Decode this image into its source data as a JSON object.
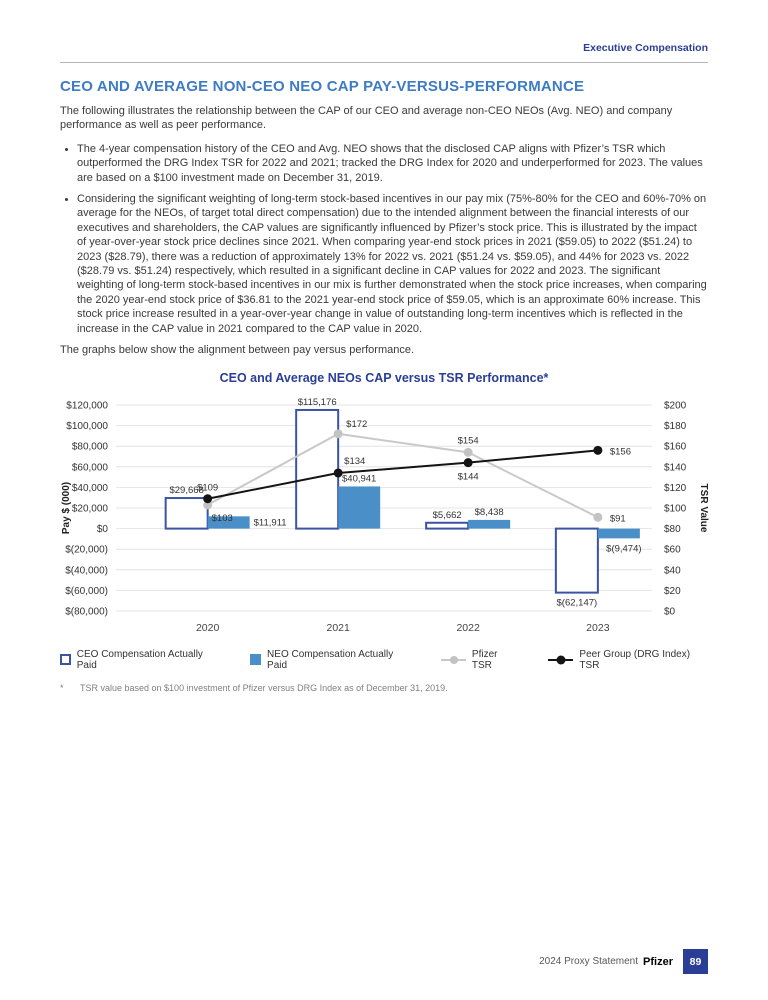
{
  "header": {
    "crumb": "Executive Compensation"
  },
  "section": {
    "title": "CEO AND AVERAGE NON-CEO NEO CAP PAY-VERSUS-PERFORMANCE",
    "intro": "The following illustrates the relationship between the CAP of our CEO and average non-CEO NEOs (Avg. NEO) and company performance as well as peer performance.",
    "bullets": [
      "The 4-year compensation history of the CEO and Avg. NEO shows that the disclosed CAP aligns with Pfizer’s TSR which outperformed the DRG Index TSR for 2022 and 2021; tracked the DRG Index for 2020 and underperformed for 2023. The values are based on a $100 investment made on December 31, 2019.",
      "Considering the significant weighting of long-term stock-based incentives in our pay mix (75%-80% for the CEO and 60%-70% on average for the NEOs, of target total direct compensation) due to the intended alignment between the financial interests of our executives and shareholders, the CAP values are significantly influenced by Pfizer’s stock price. This is illustrated by the impact of year-over-year stock price declines since 2021. When comparing year-end stock prices in 2021 ($59.05) to 2022 ($51.24) to 2023 ($28.79), there was a reduction of approximately 13% for 2022 vs. 2021 ($51.24 vs. $59.05), and 44% for 2023 vs. 2022 ($28.79 vs. $51.24) respectively, which resulted in a significant decline in CAP values for 2022 and 2023. The significant weighting of long-term stock-based incentives in our mix is further demonstrated when the stock price increases, when comparing the 2020 year-end stock price of $36.81 to the 2021 year-end stock price of $59.05, which is an approximate 60% increase. This stock price increase resulted in a year-over-year change in value of outstanding long-term incentives which is reflected in the increase in the CAP value in 2021 compared to the CAP value in 2020."
    ],
    "graphs_note": "The graphs below show the alignment between pay versus performance."
  },
  "chart_data": {
    "type": "bar+line combo",
    "title": "CEO and Average NEOs CAP versus TSR Performance*",
    "categories": [
      "2020",
      "2021",
      "2022",
      "2023"
    ],
    "left_axis": {
      "label": "Pay $ (000)",
      "min": -80000,
      "max": 120000,
      "tick_step": 20000,
      "ticks": [
        "$120,000",
        "$100,000",
        "$80,000",
        "$60,000",
        "$40,000",
        "$20,000",
        "$0",
        "$(20,000)",
        "$(40,000)",
        "$(60,000)",
        "$(80,000)"
      ]
    },
    "right_axis": {
      "label": "TSR Value",
      "min": 0,
      "max": 200,
      "tick_step": 20,
      "ticks": [
        "$200",
        "$180",
        "$160",
        "$140",
        "$120",
        "$100",
        "$80",
        "$60",
        "$40",
        "$20",
        "$0"
      ]
    },
    "grid": true,
    "legend_position": "bottom",
    "series": [
      {
        "name": "CEO Compensation Actually Paid",
        "type": "bar",
        "style": "outline",
        "axis": "left",
        "color": "#3a53a4",
        "values": [
          29668,
          115176,
          5662,
          -62147
        ],
        "labels": [
          "$29,668",
          "$115,176",
          "$5,662",
          "$(62,147)"
        ]
      },
      {
        "name": "NEO Compensation Actually Paid",
        "type": "bar",
        "style": "solid",
        "axis": "left",
        "color": "#4a8fc7",
        "values": [
          11911,
          40941,
          8438,
          -9474
        ],
        "labels": [
          "$11,911",
          "$40,941",
          "$8,438",
          "$(9,474)"
        ]
      },
      {
        "name": "Pfizer TSR",
        "type": "line",
        "axis": "right",
        "color": "#c9c9c9",
        "values": [
          103,
          172,
          154,
          91
        ],
        "labels": [
          "$103",
          "$172",
          "$154",
          "$91"
        ]
      },
      {
        "name": "Peer Group (DRG Index) TSR",
        "type": "line",
        "axis": "right",
        "color": "#141414",
        "values": [
          109,
          134,
          144,
          156
        ],
        "labels": [
          "$109",
          "$134",
          "$144",
          "$156"
        ]
      }
    ]
  },
  "footnote": {
    "marker": "*",
    "text": "TSR value based on $100 investment of Pfizer versus DRG Index as of December 31, 2019."
  },
  "footer": {
    "doc_name": "2024 Proxy Statement",
    "brand": "Pfizer",
    "page_number": "89"
  }
}
